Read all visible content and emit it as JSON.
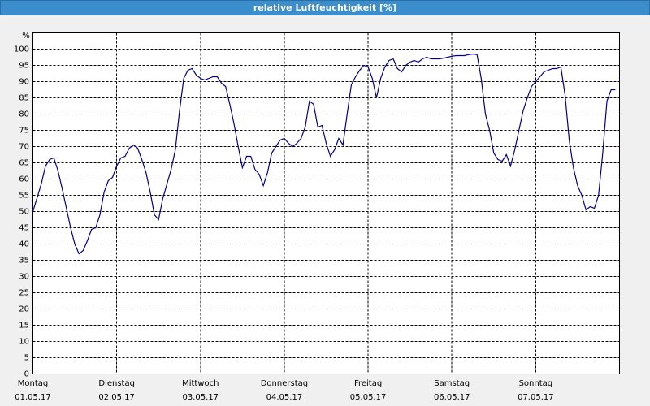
{
  "chart_data": {
    "type": "line",
    "title": "relative Luftfeuchtigkeit [%]",
    "y_unit": "%",
    "xlim": [
      0,
      7
    ],
    "xticks": [
      {
        "value": 0,
        "label": [
          "Montag",
          "01.05.17"
        ]
      },
      {
        "value": 1,
        "label": [
          "Dienstag",
          "02.05.17"
        ]
      },
      {
        "value": 2,
        "label": [
          "Mittwoch",
          "03.05.17"
        ]
      },
      {
        "value": 3,
        "label": [
          "Donnerstag",
          "04.05.17"
        ]
      },
      {
        "value": 4,
        "label": [
          "Freitag",
          "05.05.17"
        ]
      },
      {
        "value": 5,
        "label": [
          "Samstag",
          "06.05.17"
        ]
      },
      {
        "value": 6,
        "label": [
          "Sonntag",
          "07.05.17"
        ]
      }
    ],
    "ylim": [
      0,
      105
    ],
    "yticks": [
      0,
      5,
      10,
      15,
      20,
      25,
      30,
      35,
      40,
      45,
      50,
      55,
      60,
      65,
      70,
      75,
      80,
      85,
      90,
      95,
      100
    ],
    "grid": true,
    "x": [
      0,
      0.05,
      0.1,
      0.15,
      0.2,
      0.25,
      0.3,
      0.35,
      0.4,
      0.45,
      0.5,
      0.55,
      0.6,
      0.65,
      0.7,
      0.75,
      0.8,
      0.85,
      0.9,
      0.95,
      1,
      1.05,
      1.1,
      1.15,
      1.2,
      1.25,
      1.3,
      1.35,
      1.4,
      1.45,
      1.5,
      1.55,
      1.6,
      1.65,
      1.7,
      1.75,
      1.8,
      1.85,
      1.9,
      1.95,
      2,
      2.05,
      2.1,
      2.15,
      2.2,
      2.25,
      2.3,
      2.35,
      2.4,
      2.45,
      2.5,
      2.55,
      2.6,
      2.65,
      2.7,
      2.75,
      2.8,
      2.85,
      2.9,
      2.95,
      3,
      3.05,
      3.1,
      3.15,
      3.2,
      3.25,
      3.3,
      3.35,
      3.4,
      3.45,
      3.5,
      3.55,
      3.6,
      3.65,
      3.7,
      3.75,
      3.8,
      3.85,
      3.9,
      3.95,
      4,
      4.05,
      4.1,
      4.15,
      4.2,
      4.25,
      4.3,
      4.35,
      4.4,
      4.45,
      4.5,
      4.55,
      4.6,
      4.65,
      4.7,
      4.75,
      4.8,
      4.85,
      4.9,
      4.95,
      5,
      5.05,
      5.1,
      5.15,
      5.2,
      5.25,
      5.3,
      5.35,
      5.4,
      5.45,
      5.5,
      5.55,
      5.6,
      5.65,
      5.7,
      5.75,
      5.8,
      5.85,
      5.9,
      5.95,
      6,
      6.05,
      6.1,
      6.15,
      6.2,
      6.25,
      6.3,
      6.35,
      6.4,
      6.45,
      6.5,
      6.55,
      6.6,
      6.65,
      6.7,
      6.75,
      6.8,
      6.85,
      6.9,
      6.95
    ],
    "series": [
      {
        "color": "#00008b",
        "values": [
          50,
          54.2,
          58.5,
          64,
          66,
          66.5,
          62.5,
          57,
          51,
          45,
          40,
          37,
          38,
          41,
          44.5,
          45,
          49,
          56,
          59.5,
          60.5,
          64,
          66.5,
          67,
          69.5,
          70.5,
          69.5,
          66,
          62,
          56,
          49,
          47.5,
          54,
          58.5,
          63,
          69,
          81,
          91,
          93.5,
          94,
          92,
          91,
          90.5,
          91,
          91.5,
          91.5,
          89.5,
          88.5,
          83,
          77,
          70,
          63.5,
          67,
          67,
          63,
          61.5,
          58,
          62,
          68,
          70,
          72,
          72.5,
          71,
          70,
          71,
          72.5,
          76,
          84,
          83,
          76,
          76.5,
          71,
          67,
          69,
          72.5,
          70.5,
          80,
          89,
          91.5,
          93.5,
          95,
          94.5,
          91,
          85,
          91,
          94.5,
          96.5,
          97,
          94,
          93,
          95,
          96,
          96.5,
          96,
          97,
          97.5,
          97,
          97,
          97,
          97.2,
          97.5,
          97.8,
          98,
          98,
          98,
          98.3,
          98.5,
          98.3,
          91,
          80,
          75,
          68,
          66,
          65.5,
          67.5,
          64,
          69,
          75,
          81,
          85,
          88.5,
          90,
          91.5,
          93,
          93.5,
          94,
          94,
          94.5,
          86,
          72,
          63.5,
          58,
          55,
          50.5,
          51.5,
          51,
          55,
          68,
          84,
          87.5,
          87.5
        ]
      }
    ]
  }
}
